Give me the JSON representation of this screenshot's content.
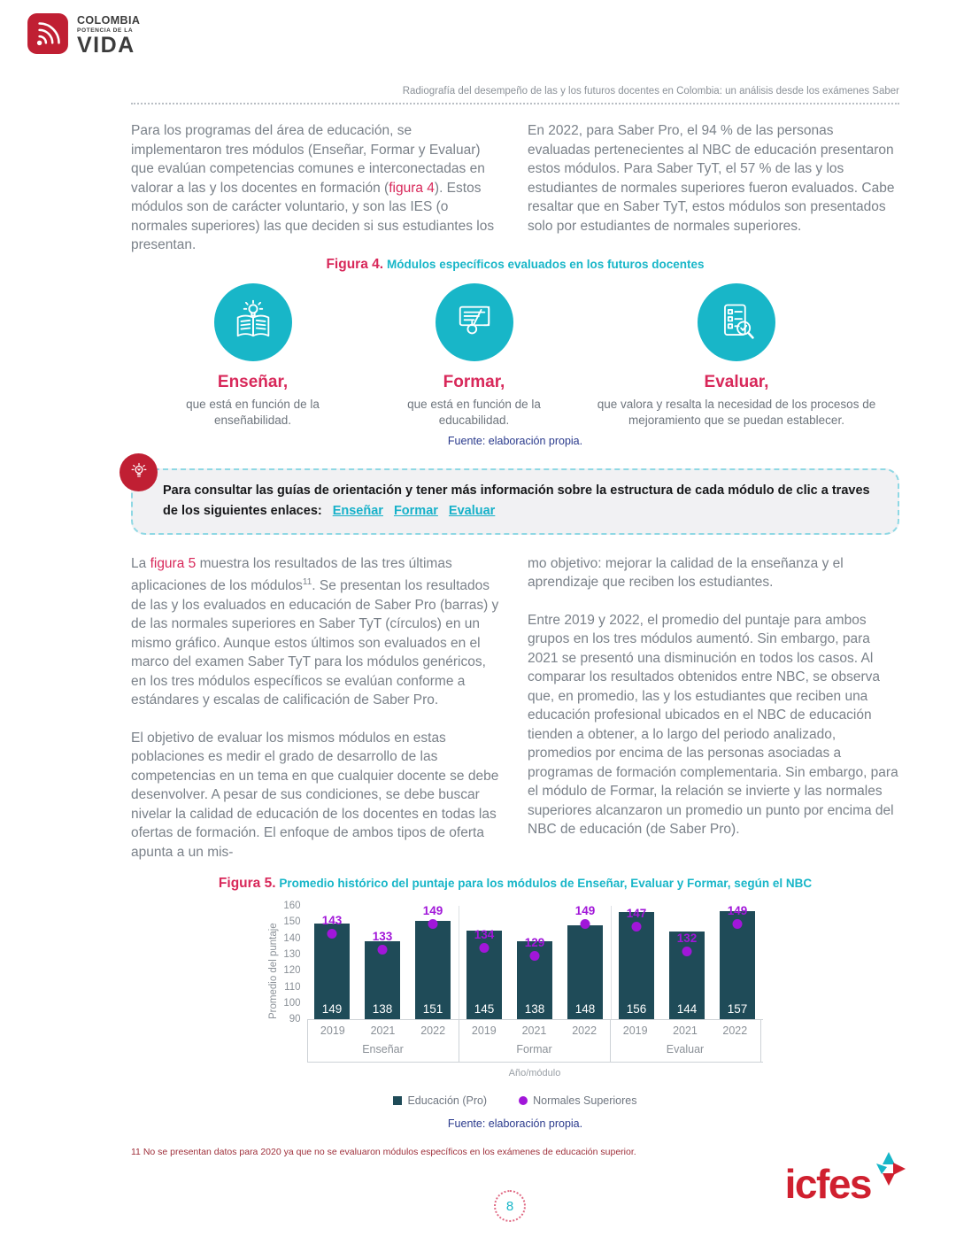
{
  "page": {
    "header": "Radiografía del desempeño de las y los futuros docentes en Colombia: un análisis desde los exámenes Saber",
    "page_number": "8"
  },
  "logo": {
    "line1": "COLOMBIA",
    "line2": "POTENCIA DE LA",
    "line3": "VIDA"
  },
  "intro": {
    "left": {
      "pre": "Para los programas del área de educación, se implementaron tres módulos (Enseñar, Formar y Evaluar) que evalúan competencias comunes e interconectadas en valorar a las y los docentes en formación (",
      "link": "figura 4",
      "post": "). Estos módulos son de carácter voluntario, y son las IES (o normales superiores) las que deciden si sus estudiantes los presentan."
    },
    "right": "En 2022, para Saber Pro, el 94 % de las personas evaluadas pertenecientes al NBC de educación presentaron estos módulos. Para Saber TyT, el 57 % de las y los estudiantes de normales superiores fueron evaluados. Cabe resaltar que en Saber TyT, estos módulos son presentados solo por estudiantes de normales superiores."
  },
  "figure4": {
    "label": "Figura 4.",
    "caption": "Módulos específicos evaluados en los futuros docentes",
    "items": [
      {
        "title": "Enseñar,",
        "desc": "que está en función de la enseñabilidad.",
        "icon": "book-bulb-icon"
      },
      {
        "title": "Formar,",
        "desc": "que está en función de la educabilidad.",
        "icon": "board-hand-icon"
      },
      {
        "title": "Evaluar,",
        "desc": "que valora y resalta la necesidad de los procesos de mejoramiento que se puedan establecer.",
        "icon": "checklist-magnifier-icon"
      }
    ],
    "source": "Fuente: elaboración propia."
  },
  "callout": {
    "text": "Para consultar las guías de orientación y tener más información sobre la estructura de cada módulo de clic a traves de los siguientes enlaces:",
    "links": [
      "Enseñar",
      "Formar",
      "Evaluar"
    ]
  },
  "body2": {
    "left_p1": {
      "pre": "La ",
      "link": "figura 5",
      "mid": " muestra los resultados de las tres últimas aplicaciones de los módulos",
      "sup": "11",
      "post": ". Se presentan los resultados de las y los evaluados en educación de Saber Pro (barras) y de las normales superiores en Saber TyT (círculos) en un mismo gráfico. Aunque estos últimos son evaluados en el marco del examen Saber TyT para los módulos genéricos, en los tres módulos específicos se evalúan conforme a estándares y escalas de calificación de Saber Pro."
    },
    "left_p2": "El objetivo de evaluar los mismos módulos en estas poblaciones es medir el grado de desarrollo de las competencias en un tema en que cualquier docente se debe desenvolver. A pesar de sus condiciones, se debe buscar nivelar la calidad de educación de los docentes en todas las ofertas de formación. El enfoque de ambos tipos de oferta apunta a un mis-",
    "right_p1": "mo objetivo: mejorar la calidad de la enseñanza y el aprendizaje que reciben los estudiantes.",
    "right_p2": "Entre 2019 y 2022, el promedio del puntaje para ambos grupos en los tres módulos aumentó. Sin embargo, para 2021 se presentó una disminución en todos los casos. Al comparar los resultados obtenidos entre NBC, se observa que, en promedio, las y los estudiantes que reciben una educación profesional ubicados en el NBC de educación tienden a obtener, a lo largo del periodo analizado, promedios por encima de las personas asociadas a programas de formación complementaria. Sin embargo, para el módulo de Formar, la relación se invierte y las normales superiores alcanzaron un promedio un punto por encima del NBC de educación (de Saber Pro)."
  },
  "chart_data": {
    "type": "bar",
    "figure_label": "Figura 5.",
    "title": "Promedio histórico del puntaje para los módulos de Enseñar, Evaluar y Formar, según el NBC",
    "ylabel": "Promedio del puntaje",
    "xlabel": "Año/módulo",
    "ylim": [
      90,
      160
    ],
    "yticks": [
      160,
      150,
      140,
      130,
      120,
      110,
      100,
      90
    ],
    "categories": [
      "2019",
      "2021",
      "2022"
    ],
    "groups": [
      {
        "label": "Enseñar",
        "years": [
          "2019",
          "2021",
          "2022"
        ],
        "bars": [
          149,
          138,
          151
        ],
        "dots": [
          143,
          133,
          149
        ]
      },
      {
        "label": "Formar",
        "years": [
          "2019",
          "2021",
          "2022"
        ],
        "bars": [
          145,
          138,
          148
        ],
        "dots": [
          134,
          129,
          149
        ]
      },
      {
        "label": "Evaluar",
        "years": [
          "2019",
          "2021",
          "2022"
        ],
        "bars": [
          156,
          144,
          157
        ],
        "dots": [
          147,
          132,
          149
        ]
      }
    ],
    "legend": [
      {
        "label": "Educación (Pro)",
        "marker": "square",
        "color": "#1f4b58"
      },
      {
        "label": "Normales Superiores",
        "marker": "circle",
        "color": "#a116d9"
      }
    ],
    "source": "Fuente: elaboración propia."
  },
  "footnote": "11 No se presentan datos para 2020 ya que no se evaluaron módulos específicos en los exámenes de educación superior.",
  "icfes": {
    "wordmark": "icfes"
  },
  "colors": {
    "teal": "#18b6c8",
    "crimson": "#d8285a",
    "bar_teal": "#1f4b58",
    "purple": "#a116d9",
    "navy": "#2a3a8c",
    "logo_red": "#c01f33"
  }
}
